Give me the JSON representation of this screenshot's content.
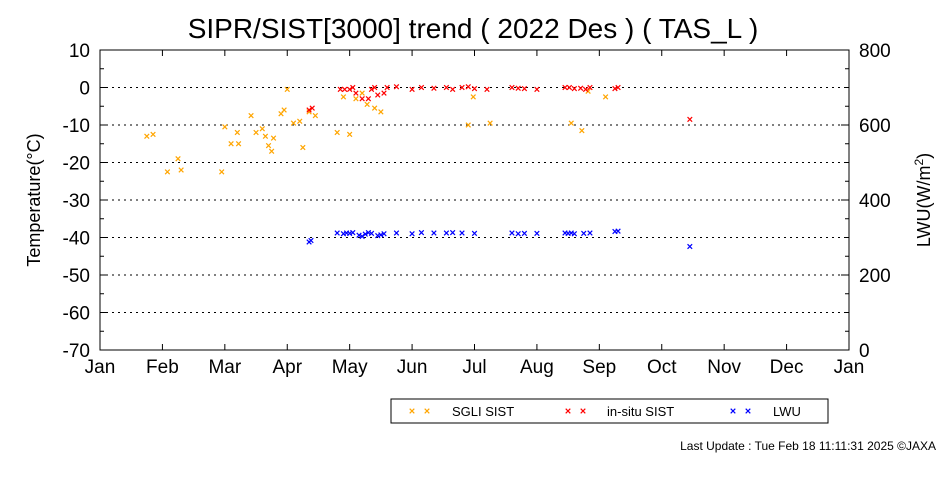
{
  "chart_data": {
    "type": "scatter",
    "title": "SIPR/SIST[3000] trend ( 2022 Des ) ( TAS_L )",
    "ylabel": "Temperature(°C)",
    "y2label_main": "LWU(W/m",
    "y2label_sup": "2",
    "y2label_end": ")",
    "xlim": [
      "Jan",
      "Jan"
    ],
    "ylim": [
      -70,
      10
    ],
    "y2lim": [
      0,
      800
    ],
    "x_ticks": [
      "Jan",
      "Feb",
      "Mar",
      "Apr",
      "May",
      "Jun",
      "Jul",
      "Aug",
      "Sep",
      "Oct",
      "Nov",
      "Dec",
      "Jan"
    ],
    "y_ticks": [
      "10",
      "0",
      "-10",
      "-20",
      "-30",
      "-40",
      "-50",
      "-60",
      "-70"
    ],
    "y2_ticks": [
      "800",
      "600",
      "400",
      "200",
      "0"
    ],
    "grid": "horizontal dotted",
    "legend_position": "bottom-right",
    "series": [
      {
        "name": "SGLI SIST",
        "axis": "left",
        "color": "#ffa500",
        "points": [
          [
            1.75,
            -13
          ],
          [
            1.85,
            -12.5
          ],
          [
            2.08,
            -22.5
          ],
          [
            2.25,
            -19
          ],
          [
            2.3,
            -22
          ],
          [
            2.95,
            -22.5
          ],
          [
            3.0,
            -10.5
          ],
          [
            3.1,
            -15
          ],
          [
            3.2,
            -12
          ],
          [
            3.22,
            -15
          ],
          [
            3.42,
            -7.5
          ],
          [
            3.5,
            -12
          ],
          [
            3.6,
            -11
          ],
          [
            3.65,
            -13
          ],
          [
            3.7,
            -15.5
          ],
          [
            3.75,
            -17
          ],
          [
            3.78,
            -13.5
          ],
          [
            3.9,
            -7
          ],
          [
            3.95,
            -6
          ],
          [
            4.0,
            -0.5
          ],
          [
            4.1,
            -9.5
          ],
          [
            4.2,
            -9
          ],
          [
            4.25,
            -16
          ],
          [
            4.35,
            -6.5
          ],
          [
            4.45,
            -7.5
          ],
          [
            4.8,
            -12
          ],
          [
            4.9,
            -2.5
          ],
          [
            5.0,
            -12.5
          ],
          [
            5.1,
            -3
          ],
          [
            5.2,
            -1.5
          ],
          [
            5.28,
            -4.5
          ],
          [
            5.4,
            -5.5
          ],
          [
            5.5,
            -6.5
          ],
          [
            6.9,
            -10
          ],
          [
            6.98,
            -2.5
          ],
          [
            7.25,
            -9.5
          ],
          [
            8.55,
            -9.5
          ],
          [
            8.72,
            -11.5
          ],
          [
            8.82,
            -1
          ],
          [
            9.1,
            -2.5
          ]
        ]
      },
      {
        "name": "in-situ SIST",
        "axis": "left",
        "color": "#ff0000",
        "points": [
          [
            4.35,
            -6
          ],
          [
            4.4,
            -5.5
          ],
          [
            4.85,
            -0.5
          ],
          [
            4.92,
            -0.5
          ],
          [
            5.0,
            -0.5
          ],
          [
            5.05,
            0
          ],
          [
            5.1,
            -1.5
          ],
          [
            5.2,
            -3
          ],
          [
            5.3,
            -3
          ],
          [
            5.35,
            -0.5
          ],
          [
            5.4,
            0
          ],
          [
            5.45,
            -2
          ],
          [
            5.55,
            -1.5
          ],
          [
            5.6,
            0
          ],
          [
            5.75,
            0.2
          ],
          [
            6.0,
            -0.5
          ],
          [
            6.15,
            0
          ],
          [
            6.35,
            -0.2
          ],
          [
            6.55,
            0
          ],
          [
            6.65,
            -0.5
          ],
          [
            6.8,
            0
          ],
          [
            6.9,
            0.2
          ],
          [
            7.0,
            -0.3
          ],
          [
            7.2,
            -0.5
          ],
          [
            7.6,
            0
          ],
          [
            7.7,
            -0.2
          ],
          [
            7.8,
            -0.3
          ],
          [
            8.0,
            -0.5
          ],
          [
            8.45,
            0
          ],
          [
            8.52,
            0
          ],
          [
            8.6,
            -0.3
          ],
          [
            8.7,
            -0.2
          ],
          [
            8.78,
            -0.5
          ],
          [
            8.85,
            0
          ],
          [
            9.25,
            -0.3
          ],
          [
            9.3,
            0
          ],
          [
            10.45,
            -8.5
          ]
        ]
      },
      {
        "name": "LWU",
        "axis": "right",
        "color": "#0000ff",
        "points": [
          [
            4.35,
            288
          ],
          [
            4.38,
            292
          ],
          [
            4.8,
            312
          ],
          [
            4.9,
            310
          ],
          [
            4.95,
            312
          ],
          [
            5.0,
            311
          ],
          [
            5.05,
            313
          ],
          [
            5.15,
            306
          ],
          [
            5.2,
            303
          ],
          [
            5.25,
            309
          ],
          [
            5.3,
            313
          ],
          [
            5.35,
            311
          ],
          [
            5.45,
            305
          ],
          [
            5.5,
            307
          ],
          [
            5.55,
            310
          ],
          [
            5.75,
            312
          ],
          [
            6.0,
            310
          ],
          [
            6.15,
            313
          ],
          [
            6.35,
            312
          ],
          [
            6.55,
            312
          ],
          [
            6.65,
            313
          ],
          [
            6.8,
            312
          ],
          [
            7.0,
            311
          ],
          [
            7.6,
            312
          ],
          [
            7.7,
            310
          ],
          [
            7.8,
            311
          ],
          [
            8.0,
            311
          ],
          [
            8.45,
            312
          ],
          [
            8.5,
            311
          ],
          [
            8.55,
            312
          ],
          [
            8.6,
            310
          ],
          [
            8.75,
            311
          ],
          [
            8.85,
            312
          ],
          [
            9.25,
            316
          ],
          [
            9.3,
            317
          ],
          [
            10.45,
            276
          ]
        ]
      }
    ]
  },
  "footer": {
    "last_update": "Last Update : Tue Feb 18 11:11:31 2025  ©JAXA"
  }
}
